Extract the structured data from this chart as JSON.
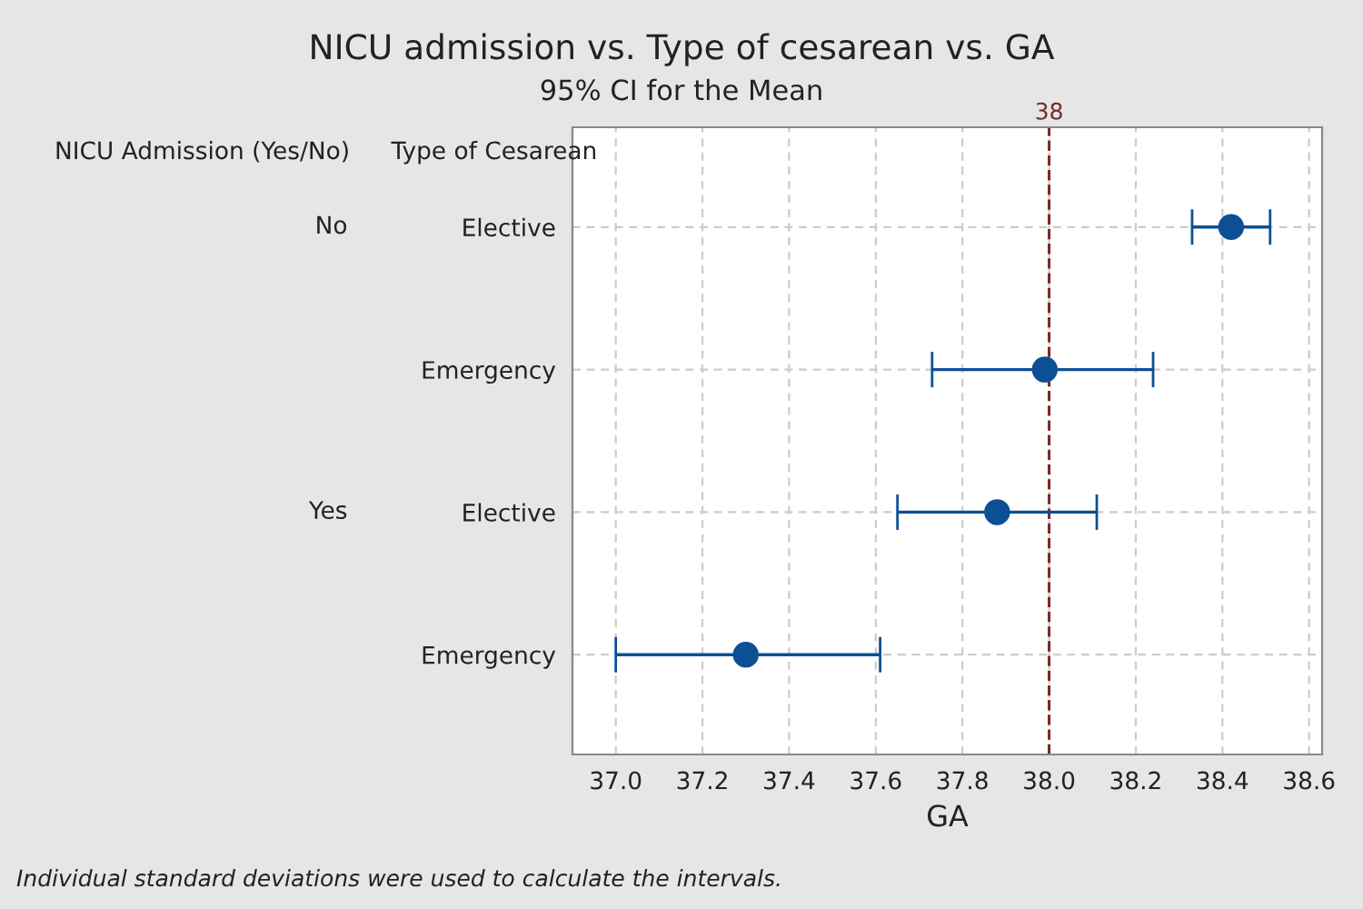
{
  "chart_data": {
    "type": "scatter",
    "orientation": "horizontal",
    "title": "NICU admission vs. Type of cesarean vs. GA",
    "subtitle": "95% CI for the Mean",
    "xlabel": "GA",
    "ylabel": "Type of Cesarean",
    "categories": [
      "Elective",
      "Emergency",
      "Elective",
      "Emergency"
    ],
    "color": "#0d4f94",
    "values": [
      38.42,
      37.99,
      37.88,
      37.3
    ],
    "errors": [
      [
        38.33,
        38.51
      ],
      [
        37.73,
        38.24
      ],
      [
        37.65,
        38.11
      ],
      [
        37.0,
        37.61
      ]
    ],
    "xlim": [
      36.9,
      38.63
    ],
    "xticks": [
      {
        "value": 37.0,
        "label": "37.0"
      },
      {
        "value": 37.2,
        "label": "37.2"
      },
      {
        "value": 37.4,
        "label": "37.4"
      },
      {
        "value": 37.6,
        "label": "37.6"
      },
      {
        "value": 37.8,
        "label": "37.8"
      },
      {
        "value": 38.0,
        "label": "38.0"
      },
      {
        "value": 38.2,
        "label": "38.2"
      },
      {
        "value": 38.4,
        "label": "38.4"
      },
      {
        "value": 38.6,
        "label": "38.6"
      }
    ],
    "ref_lines": [
      {
        "axis": "x",
        "value": 38,
        "label": "38",
        "color": "#7a2a2a",
        "line_style": "dashed"
      }
    ],
    "annotations": [
      "NICU Admission (Yes/No)",
      "No",
      "Yes",
      "Individual standard deviations were used to calculate the intervals."
    ],
    "grid": true,
    "marker": "circle"
  }
}
